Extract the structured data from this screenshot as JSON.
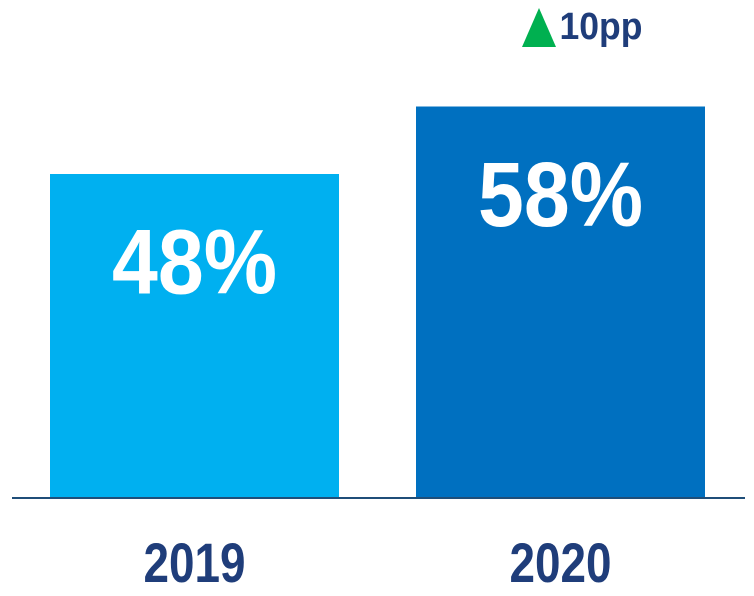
{
  "chart_data": {
    "type": "bar",
    "categories": [
      "2019",
      "2020"
    ],
    "values": [
      48,
      58
    ],
    "value_labels": [
      "48%",
      "58%"
    ],
    "colors": [
      "#00b0f0",
      "#0070c0"
    ],
    "annotation": "10pp"
  }
}
